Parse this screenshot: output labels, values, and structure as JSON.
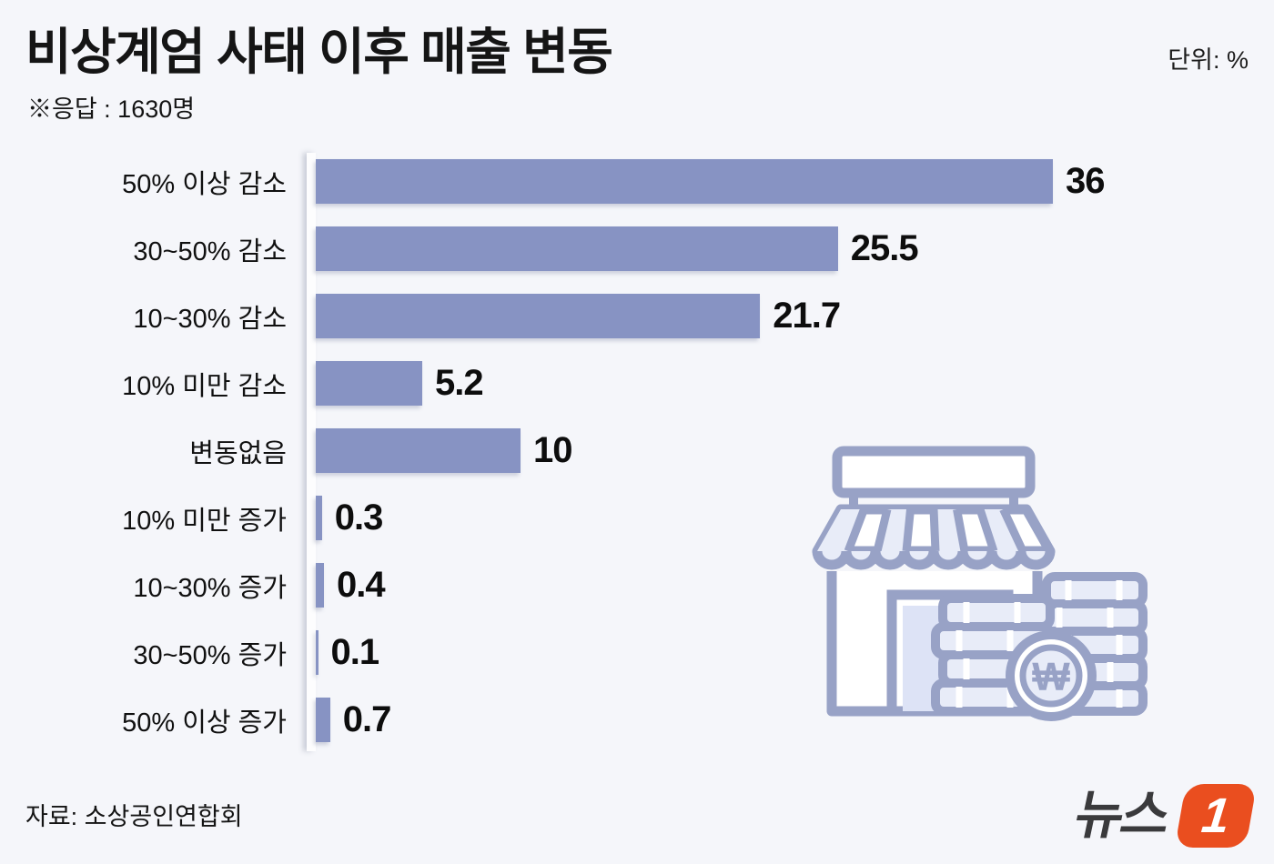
{
  "header": {
    "title": "비상계엄 사태 이후 매출 변동",
    "unit_label": "단위: %",
    "respondents_note": "※응답 : 1630명"
  },
  "chart_data": {
    "type": "bar",
    "orientation": "horizontal",
    "title": "비상계엄 사태 이후 매출 변동",
    "unit": "%",
    "categories": [
      "50% 이상 감소",
      "30~50% 감소",
      "10~30% 감소",
      "10% 미만 감소",
      "변동없음",
      "10% 미만 증가",
      "10~30% 증가",
      "30~50% 증가",
      "50% 이상 증가"
    ],
    "values": [
      36,
      25.5,
      21.7,
      5.2,
      10,
      0.3,
      0.4,
      0.1,
      0.7
    ],
    "value_labels_shown": true,
    "xlim": [
      0,
      36
    ],
    "grid": false,
    "legend": false,
    "bar_color": "#8793c3",
    "background_color": "#f5f6fa"
  },
  "icon": {
    "name": "storefront-with-coins",
    "won_symbol": "₩"
  },
  "footer": {
    "source": "자료: 소상공인연합회",
    "logo_text": "뉴스",
    "logo_badge": "1",
    "logo_badge_color": "#ea4e1f",
    "logo_text_color": "#3a3a3c"
  }
}
